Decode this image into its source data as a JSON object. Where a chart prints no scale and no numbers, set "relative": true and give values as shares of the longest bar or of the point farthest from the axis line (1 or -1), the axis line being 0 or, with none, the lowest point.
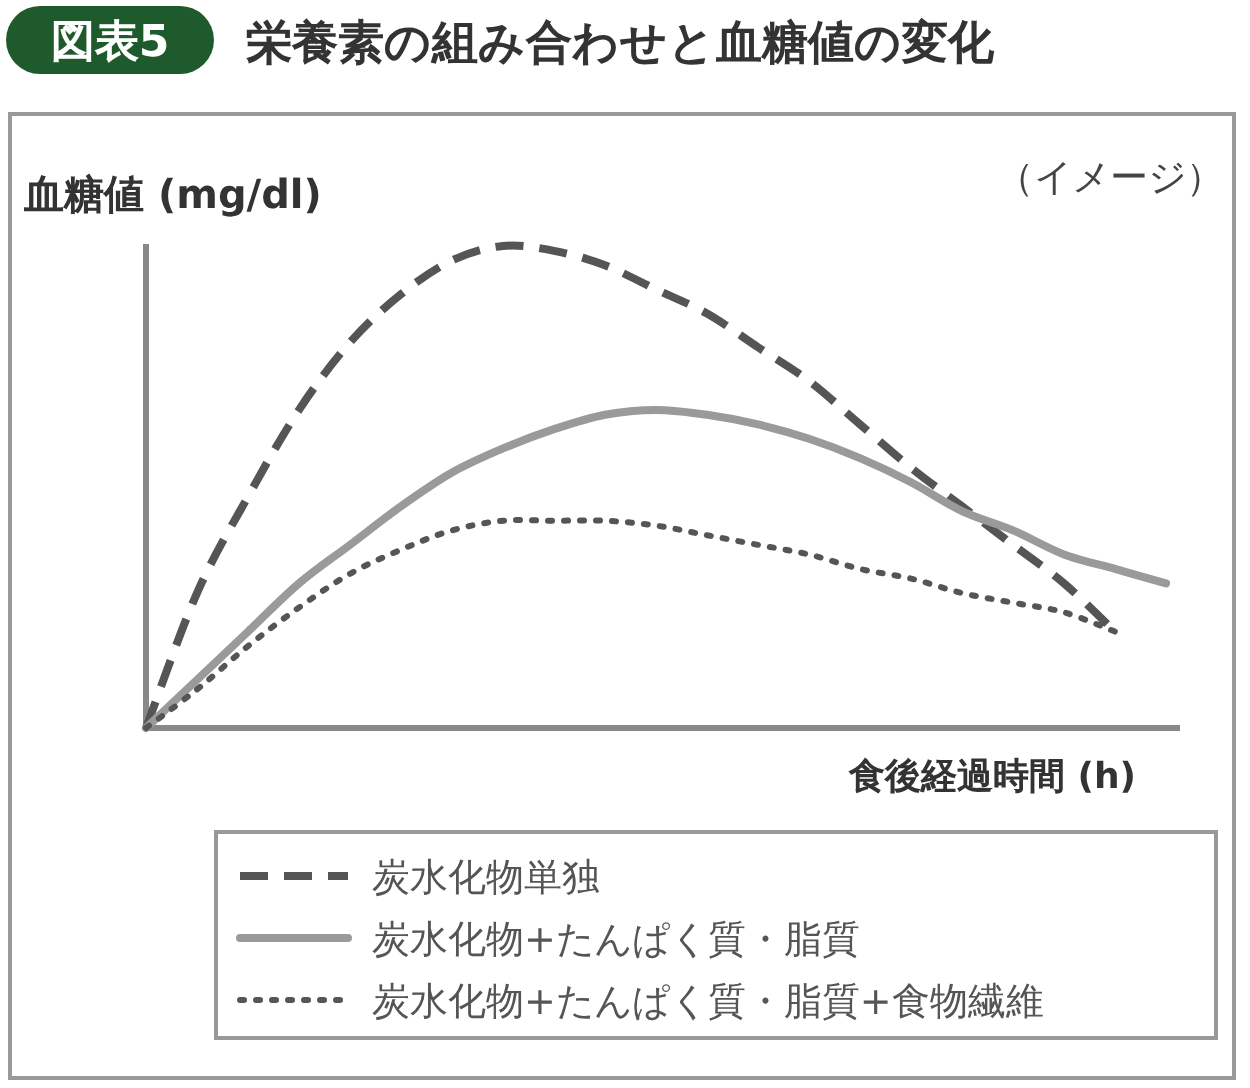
{
  "chart_data": {
    "type": "line",
    "title": "栄養素の組み合わせと血糖値の変化",
    "annotations": [
      "図表5",
      "（イメージ）"
    ],
    "xlabel": "食後経過時間 (h)",
    "ylabel": "血糖値 (mg/dl)",
    "relative": true,
    "legend": "bottom",
    "marker": "none",
    "categories": [
      null,
      null,
      null,
      null,
      null,
      null,
      null,
      null,
      null,
      null,
      null,
      null,
      null,
      null,
      null,
      null,
      null,
      null,
      null,
      null,
      null
    ],
    "series": [
      {
        "name": "炭水化物単独",
        "color": "#555555",
        "line_style": "dashed",
        "values": [
          0,
          0.28,
          0.48,
          0.66,
          0.8,
          0.9,
          0.97,
          1.0,
          0.99,
          0.96,
          0.91,
          0.86,
          0.79,
          0.72,
          0.63,
          0.54,
          0.46,
          0.38,
          0.3,
          0.2,
          null
        ]
      },
      {
        "name": "炭水化物+たんぱく質・脂質",
        "color": "#9a9a9a",
        "line_style": "solid",
        "values": [
          0,
          0.1,
          0.2,
          0.3,
          0.38,
          0.46,
          0.53,
          0.58,
          0.62,
          0.65,
          0.66,
          0.65,
          0.63,
          0.6,
          0.56,
          0.51,
          0.45,
          0.41,
          0.36,
          0.33,
          0.3
        ]
      },
      {
        "name": "炭水化物+たんぱく質・脂質+食物繊維",
        "color": "#555555",
        "line_style": "dotted",
        "values": [
          0,
          0.08,
          0.17,
          0.25,
          0.32,
          0.37,
          0.41,
          0.43,
          0.43,
          0.43,
          0.42,
          0.4,
          0.38,
          0.36,
          0.33,
          0.31,
          0.28,
          0.26,
          0.24,
          0.2,
          null
        ]
      }
    ]
  }
}
